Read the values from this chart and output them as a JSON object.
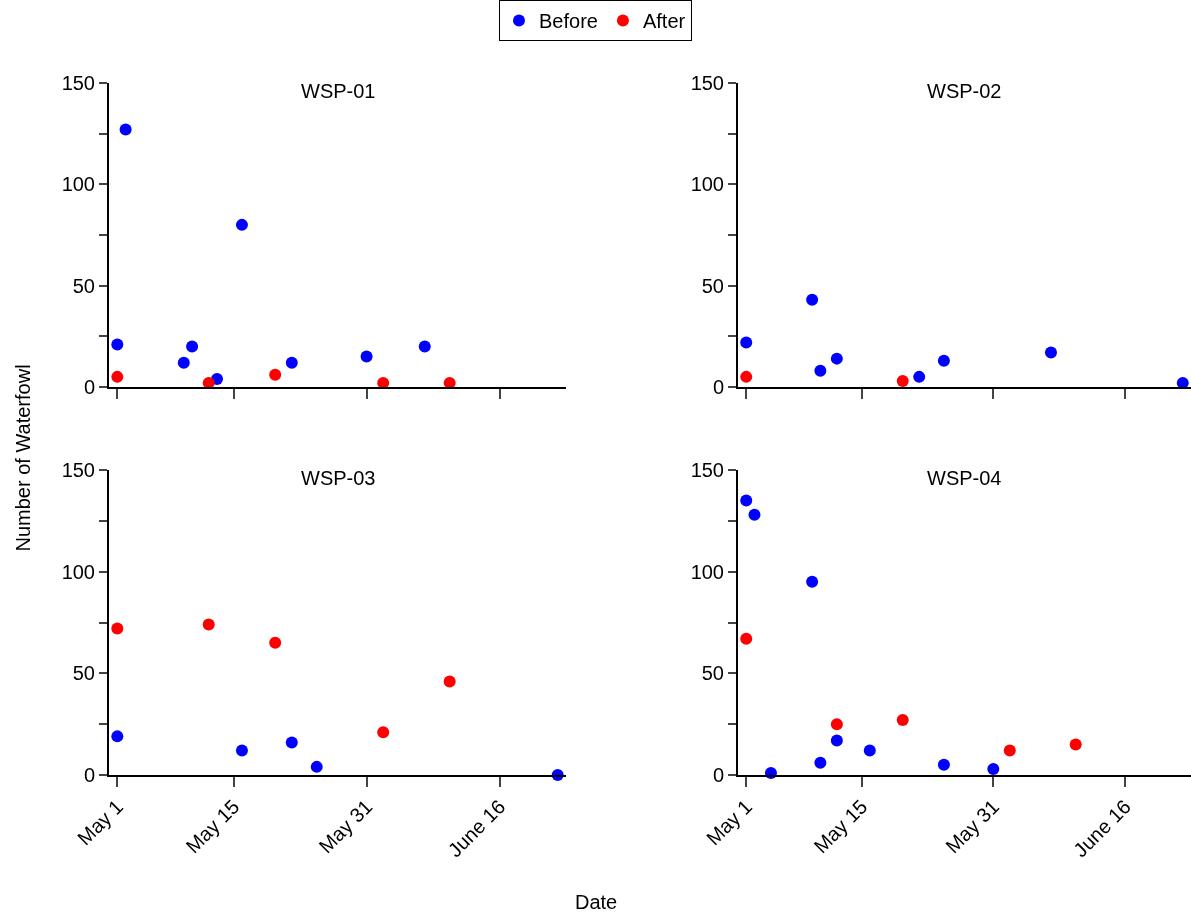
{
  "chart_data": [
    {
      "type": "scatter",
      "title": "WSP-01",
      "ylabel": "Number of Waterfowl",
      "legend": "top",
      "marker": "circle",
      "tick_labels": "y",
      "xlim": [
        "--04-30",
        "--06-24"
      ],
      "xticks": [
        {
          "value": "--05-01",
          "label": null
        },
        {
          "value": "--05-15",
          "label": null
        },
        {
          "value": "--05-31",
          "label": null
        },
        {
          "value": "--06-16",
          "label": null
        }
      ],
      "ylim": [
        0,
        150
      ],
      "yticks": [
        0,
        {
          "value": 25,
          "label": null
        },
        50,
        {
          "value": 75,
          "label": null
        },
        100,
        {
          "value": 125,
          "label": null
        },
        150
      ],
      "series": [
        {
          "name": "Before",
          "color": "#0000ff",
          "x": [
            "--05-01",
            "--05-02",
            "--05-09",
            "--05-10",
            "--05-13",
            "--05-16",
            "--05-22",
            "--05-31",
            "--06-07"
          ],
          "values": [
            21,
            127,
            12,
            20,
            4,
            80,
            12,
            15,
            20
          ]
        },
        {
          "name": "After",
          "color": "#ff0000",
          "x": [
            "--05-01",
            "--05-12",
            "--05-20",
            "--06-02",
            "--06-10"
          ],
          "values": [
            5,
            2,
            6,
            2,
            2
          ]
        }
      ]
    },
    {
      "type": "scatter",
      "title": "WSP-02",
      "marker": "circle",
      "tick_labels": "y",
      "xlim": [
        "--04-30",
        "--06-24"
      ],
      "xticks": [
        {
          "value": "--05-01",
          "label": null
        },
        {
          "value": "--05-15",
          "label": null
        },
        {
          "value": "--05-31",
          "label": null
        },
        {
          "value": "--06-16",
          "label": null
        }
      ],
      "ylim": [
        0,
        150
      ],
      "yticks": [
        0,
        {
          "value": 25,
          "label": null
        },
        50,
        {
          "value": 75,
          "label": null
        },
        100,
        {
          "value": 125,
          "label": null
        },
        150
      ],
      "series": [
        {
          "color": "#0000ff",
          "x": [
            "--05-01",
            "--05-09",
            "--05-10",
            "--05-12",
            "--05-22",
            "--05-25",
            "--06-07",
            "--06-23"
          ],
          "values": [
            22,
            43,
            8,
            14,
            5,
            13,
            17,
            2
          ]
        },
        {
          "color": "#ff0000",
          "x": [
            "--05-01",
            "--05-20"
          ],
          "values": [
            5,
            3
          ]
        }
      ]
    },
    {
      "type": "scatter",
      "title": "WSP-03",
      "xlabel": "Date",
      "marker": "circle",
      "xlim": [
        "--04-30",
        "--06-24"
      ],
      "xticks": [
        {
          "value": "--05-01",
          "label": "May 1"
        },
        {
          "value": "--05-15",
          "label": "May 15"
        },
        {
          "value": "--05-31",
          "label": "May 31"
        },
        {
          "value": "--06-16",
          "label": "June 16"
        }
      ],
      "ylim": [
        0,
        150
      ],
      "yticks": [
        0,
        {
          "value": 25,
          "label": null
        },
        50,
        {
          "value": 75,
          "label": null
        },
        100,
        {
          "value": 125,
          "label": null
        },
        150
      ],
      "series": [
        {
          "color": "#0000ff",
          "x": [
            "--05-01",
            "--05-16",
            "--05-22",
            "--05-25",
            "--06-23"
          ],
          "values": [
            19,
            12,
            16,
            4,
            0
          ]
        },
        {
          "color": "#ff0000",
          "x": [
            "--05-01",
            "--05-12",
            "--05-20",
            "--06-02",
            "--06-10"
          ],
          "values": [
            72,
            74,
            65,
            21,
            46
          ]
        }
      ]
    },
    {
      "type": "scatter",
      "title": "WSP-04",
      "marker": "circle",
      "xlim": [
        "--04-30",
        "--06-24"
      ],
      "xticks": [
        {
          "value": "--05-01",
          "label": "May 1"
        },
        {
          "value": "--05-15",
          "label": "May 15"
        },
        {
          "value": "--05-31",
          "label": "May 31"
        },
        {
          "value": "--06-16",
          "label": "June 16"
        }
      ],
      "ylim": [
        0,
        150
      ],
      "yticks": [
        0,
        {
          "value": 25,
          "label": null
        },
        50,
        {
          "value": 75,
          "label": null
        },
        100,
        {
          "value": 125,
          "label": null
        },
        150
      ],
      "series": [
        {
          "color": "#0000ff",
          "x": [
            "--05-01",
            "--05-02",
            "--05-04",
            "--05-09",
            "--05-10",
            "--05-12",
            "--05-16",
            "--05-25",
            "--05-31"
          ],
          "values": [
            135,
            128,
            1,
            95,
            6,
            17,
            12,
            5,
            3
          ]
        },
        {
          "color": "#ff0000",
          "x": [
            "--05-01",
            "--05-12",
            "--05-20",
            "--06-02",
            "--06-10"
          ],
          "values": [
            67,
            25,
            27,
            12,
            15
          ]
        }
      ]
    }
  ]
}
